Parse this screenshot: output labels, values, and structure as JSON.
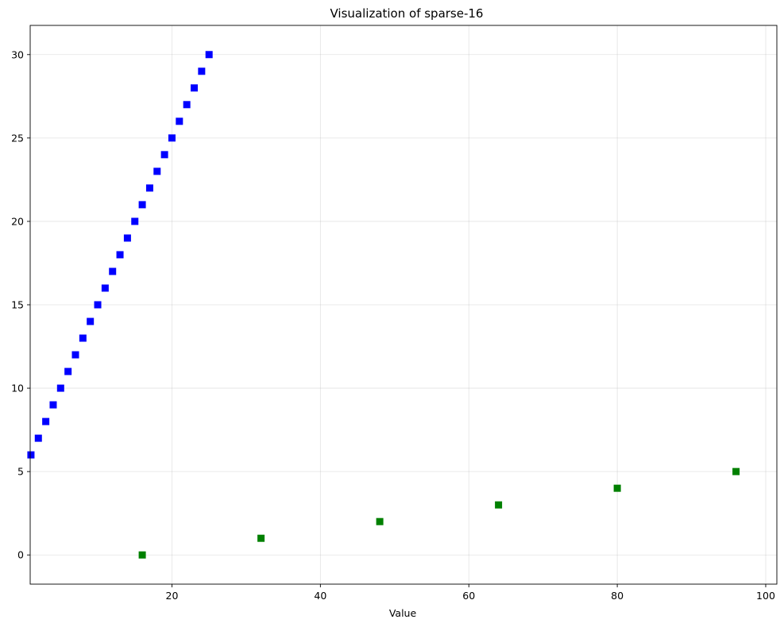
{
  "chart_data": {
    "type": "scatter",
    "title": "Visualization of sparse-16",
    "xlabel": "Value",
    "ylabel": "",
    "xlim": [
      0.9,
      101.5
    ],
    "ylim": [
      -1.75,
      31.75
    ],
    "xticks": [
      20,
      40,
      60,
      80,
      100
    ],
    "yticks": [
      0,
      5,
      10,
      15,
      20,
      25,
      30
    ],
    "grid": true,
    "marker": "square",
    "series": [
      {
        "color": "#0000ff",
        "x": [
          1,
          2,
          3,
          4,
          5,
          6,
          7,
          8,
          9,
          10,
          11,
          12,
          13,
          14,
          15,
          16,
          17,
          18,
          19,
          20,
          21,
          22,
          23,
          24,
          25
        ],
        "y": [
          6,
          7,
          8,
          9,
          10,
          11,
          12,
          13,
          14,
          15,
          16,
          17,
          18,
          19,
          20,
          21,
          22,
          23,
          24,
          25,
          26,
          27,
          28,
          29,
          30
        ]
      },
      {
        "color": "#008000",
        "x": [
          16,
          32,
          48,
          64,
          80,
          96
        ],
        "y": [
          0,
          1,
          2,
          3,
          4,
          5
        ]
      }
    ]
  }
}
